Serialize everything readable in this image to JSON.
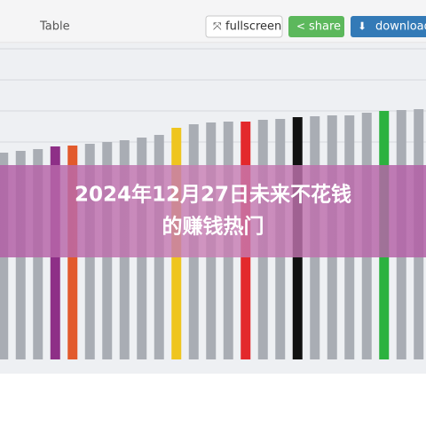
{
  "toolbar": {
    "tabs": [
      "Table"
    ],
    "buttons": [
      "fullscreen",
      "share",
      "download"
    ]
  },
  "overlay": {
    "title_lines": [
      "2024年12月27日未来不花钱",
      "的赚钱热门"
    ]
  },
  "chart_data": {
    "type": "bar",
    "categories": [
      null,
      null,
      null,
      null,
      null,
      null,
      null,
      null,
      null,
      null,
      null,
      null,
      null,
      null,
      null,
      null,
      null,
      null,
      null,
      null,
      null,
      null,
      null,
      null,
      null
    ],
    "values": [
      233,
      235,
      237,
      240,
      241,
      243,
      245,
      247,
      250,
      253,
      261,
      265,
      267,
      268,
      268,
      270,
      271,
      273,
      274,
      275,
      275,
      278,
      280,
      281,
      282
    ],
    "colors": [
      "#a9adb4",
      "#a9adb4",
      "#a9adb4",
      "#8e2f87",
      "#e25a2c",
      "#a9adb4",
      "#a9adb4",
      "#a9adb4",
      "#a9adb4",
      "#a9adb4",
      "#efc51f",
      "#a9adb4",
      "#a9adb4",
      "#a9adb4",
      "#e3292c",
      "#a9adb4",
      "#a9adb4",
      "#121212",
      "#a9adb4",
      "#a9adb4",
      "#a9adb4",
      "#a9adb4",
      "#2cb23f",
      "#a9adb4",
      "#a9adb4"
    ],
    "ylim": [
      0,
      360
    ]
  }
}
